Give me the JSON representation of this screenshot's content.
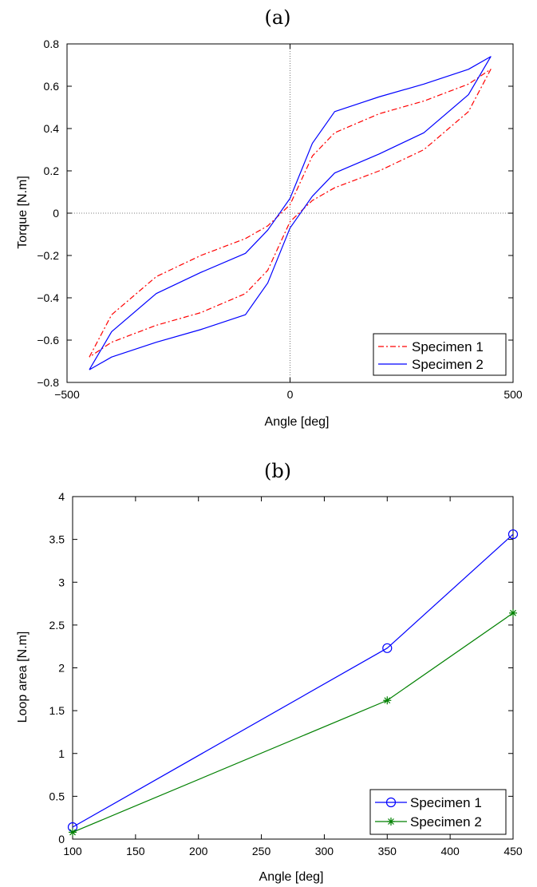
{
  "chart_data": [
    {
      "panel": "(a)",
      "type": "line",
      "title": "(a)",
      "xlabel": "Angle [deg]",
      "ylabel": "Torque [N.m]",
      "xlim": [
        -500,
        500
      ],
      "ylim": [
        -0.8,
        0.8
      ],
      "xticks": [
        -500,
        0,
        500
      ],
      "xtick_labels": [
        "−500",
        "0",
        "500"
      ],
      "yticks": [
        -0.8,
        -0.6,
        -0.4,
        -0.2,
        0,
        0.2,
        0.4,
        0.6,
        0.8
      ],
      "ytick_labels": [
        "−0.8",
        "−0.6",
        "−0.4",
        "−0.2",
        "0",
        "0.2",
        "0.4",
        "0.6",
        "0.8"
      ],
      "grid": false,
      "zero_lines": true,
      "legend_position": "bottom-right",
      "series": [
        {
          "name": "Specimen 1",
          "color": "#ff0000",
          "style": "dash-dot",
          "marker": "none",
          "x": [
            -450,
            -400,
            -300,
            -200,
            -100,
            -50,
            0,
            50,
            100,
            200,
            300,
            400,
            450,
            400,
            300,
            200,
            100,
            50,
            0,
            -50,
            -100,
            -200,
            -300,
            -400,
            -450
          ],
          "y": [
            -0.68,
            -0.48,
            -0.3,
            -0.2,
            -0.12,
            -0.06,
            0.04,
            0.27,
            0.38,
            0.47,
            0.53,
            0.61,
            0.68,
            0.48,
            0.3,
            0.2,
            0.12,
            0.06,
            -0.04,
            -0.27,
            -0.38,
            -0.47,
            -0.53,
            -0.61,
            -0.68
          ]
        },
        {
          "name": "Specimen 2",
          "color": "#0000ff",
          "style": "solid",
          "marker": "none",
          "x": [
            -450,
            -400,
            -300,
            -200,
            -100,
            -50,
            0,
            50,
            100,
            200,
            300,
            400,
            450,
            400,
            300,
            200,
            100,
            50,
            0,
            -50,
            -100,
            -200,
            -300,
            -400,
            -450
          ],
          "y": [
            -0.74,
            -0.56,
            -0.38,
            -0.28,
            -0.19,
            -0.08,
            0.07,
            0.33,
            0.48,
            0.55,
            0.61,
            0.68,
            0.74,
            0.56,
            0.38,
            0.28,
            0.19,
            0.08,
            -0.07,
            -0.33,
            -0.48,
            -0.55,
            -0.61,
            -0.68,
            -0.74
          ]
        }
      ]
    },
    {
      "panel": "(b)",
      "type": "line",
      "title": "(b)",
      "xlabel": "Angle [deg]",
      "ylabel": "Loop area [N.m]",
      "xlim": [
        100,
        450
      ],
      "ylim": [
        0,
        4
      ],
      "xticks": [
        100,
        150,
        200,
        250,
        300,
        350,
        400,
        450
      ],
      "xtick_labels": [
        "100",
        "150",
        "200",
        "250",
        "300",
        "350",
        "400",
        "450"
      ],
      "yticks": [
        0,
        0.5,
        1,
        1.5,
        2,
        2.5,
        3,
        3.5,
        4
      ],
      "ytick_labels": [
        "0",
        "0.5",
        "1",
        "1.5",
        "2",
        "2.5",
        "3",
        "3.5",
        "4"
      ],
      "grid": false,
      "legend_position": "bottom-right",
      "series": [
        {
          "name": "Specimen 1",
          "color": "#0000ff",
          "style": "solid",
          "marker": "circle",
          "x": [
            100,
            350,
            450
          ],
          "y": [
            0.14,
            2.23,
            3.56
          ]
        },
        {
          "name": "Specimen 2",
          "color": "#008000",
          "style": "solid",
          "marker": "asterisk",
          "x": [
            100,
            350,
            450
          ],
          "y": [
            0.08,
            1.62,
            2.64
          ]
        }
      ]
    }
  ]
}
